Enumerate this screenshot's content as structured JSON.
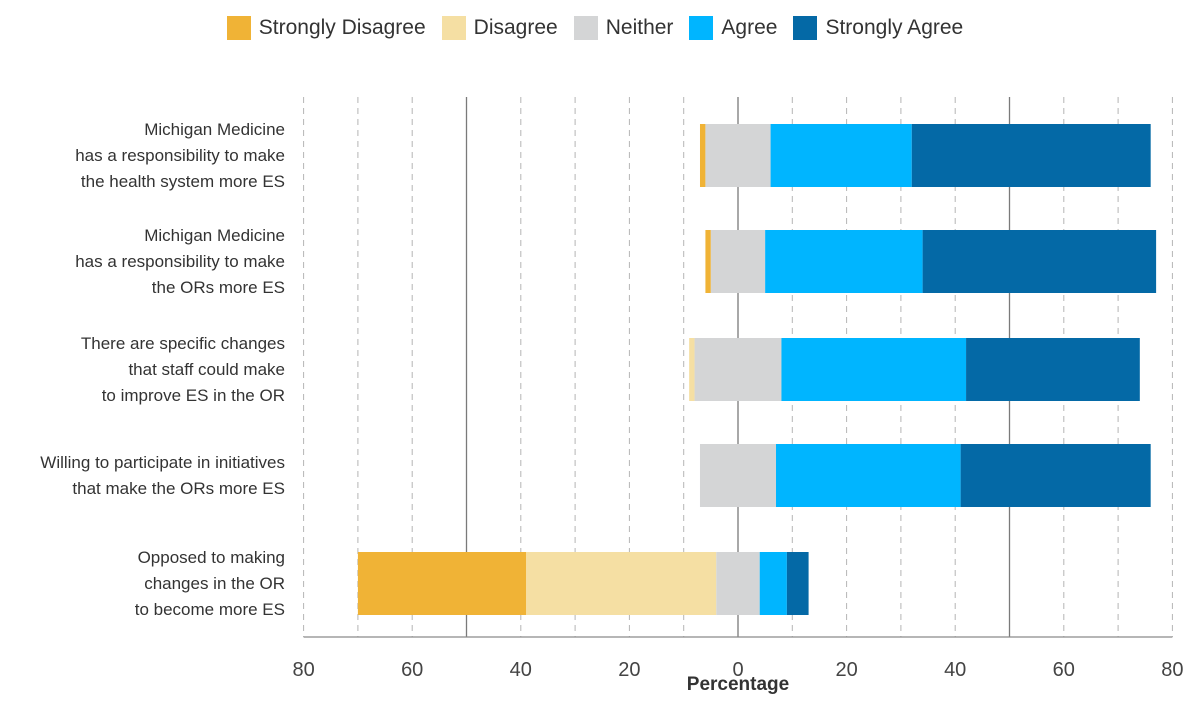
{
  "chart_data": {
    "type": "bar",
    "orientation": "horizontal",
    "stacked": "diverging",
    "xlabel": "Percentage",
    "xlim": [
      -80,
      80
    ],
    "xticks": [
      -80,
      -60,
      -40,
      -20,
      0,
      20,
      40,
      60,
      80
    ],
    "xtick_labels": [
      "80",
      "60",
      "40",
      "20",
      "0",
      "20",
      "40",
      "60",
      "80"
    ],
    "grid": "dashed vertical",
    "legend_position": "top",
    "categories": [
      [
        "Michigan Medicine",
        "has a responsibility to make",
        "the health system more ES"
      ],
      [
        "Michigan Medicine",
        "has a responsibility to make",
        "the ORs more ES"
      ],
      [
        "There are specific changes",
        "that staff could make",
        "to improve ES in the OR"
      ],
      [
        "Willing to participate in initiatives",
        "that make the ORs more ES"
      ],
      [
        "Opposed to making",
        "changes in the OR",
        "to become more ES"
      ]
    ],
    "series": [
      {
        "name": "Strongly Disagree",
        "color": "#f0b336",
        "values": [
          1,
          1,
          0,
          0,
          31
        ]
      },
      {
        "name": "Disagree",
        "color": "#f5dfa3",
        "values": [
          0,
          0,
          1,
          0,
          35
        ]
      },
      {
        "name": "Neither",
        "color": "#d4d5d6",
        "values": [
          12,
          10,
          16,
          14,
          8
        ]
      },
      {
        "name": "Agree",
        "color": "#00b5ff",
        "values": [
          26,
          29,
          34,
          34,
          5
        ]
      },
      {
        "name": "Strongly Agree",
        "color": "#0469a6",
        "values": [
          44,
          43,
          32,
          35,
          4
        ]
      }
    ]
  }
}
